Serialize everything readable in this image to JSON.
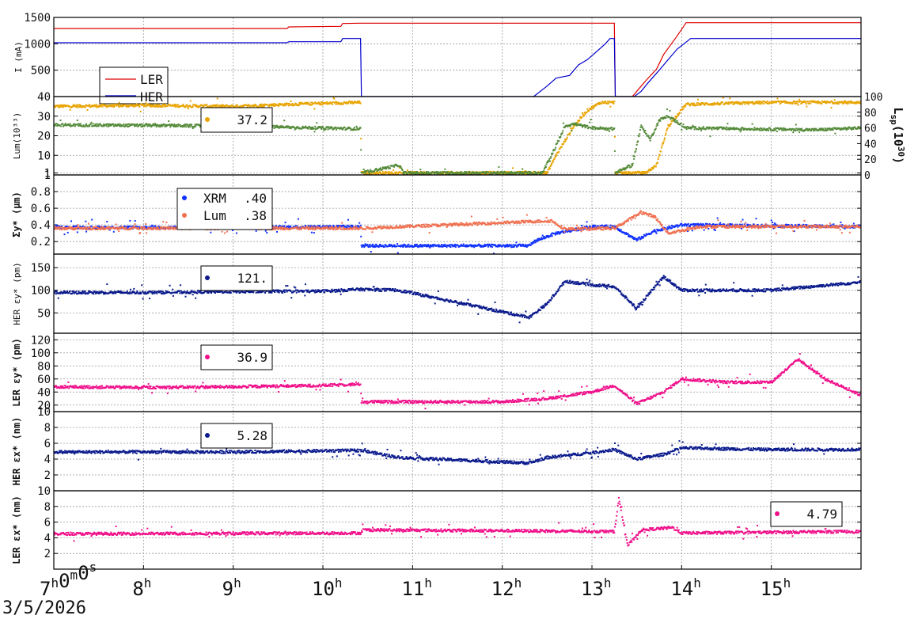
{
  "chart_data": {
    "date_label": "3/5/2026",
    "time_axis": {
      "range_h": [
        7.0,
        16.0
      ],
      "ticks": [
        {
          "h": 7,
          "label": "7",
          "sup": "h",
          "extra": "0",
          "extra_sup": "m",
          "extra2": "0",
          "extra2_sup": "s"
        },
        {
          "h": 8,
          "label": "8",
          "sup": "h"
        },
        {
          "h": 9,
          "label": "9",
          "sup": "h"
        },
        {
          "h": 10,
          "label": "10",
          "sup": "h"
        },
        {
          "h": 11,
          "label": "11",
          "sup": "h"
        },
        {
          "h": 12,
          "label": "12",
          "sup": "h"
        },
        {
          "h": 13,
          "label": "13",
          "sup": "h"
        },
        {
          "h": 14,
          "label": "14",
          "sup": "h"
        },
        {
          "h": 15,
          "label": "15",
          "sup": "h"
        }
      ]
    },
    "panels": [
      {
        "id": "current",
        "type": "line",
        "ylabel": "I (mA)",
        "ylim": [
          0,
          1500
        ],
        "yticks": [
          500,
          1000,
          1500
        ],
        "legend": {
          "LER": "LER",
          "HER": "HER"
        },
        "series": [
          {
            "name": "LER",
            "color": "#dd0000",
            "points": [
              [
                7.0,
                1290
              ],
              [
                9.6,
                1290
              ],
              [
                9.62,
                1320
              ],
              [
                10.2,
                1330
              ],
              [
                10.22,
                1385
              ],
              [
                10.42,
                1390
              ],
              [
                13.25,
                1390
              ],
              [
                13.26,
                0
              ],
              [
                13.45,
                0
              ],
              [
                13.55,
                200
              ],
              [
                13.6,
                300
              ],
              [
                13.72,
                520
              ],
              [
                13.8,
                800
              ],
              [
                13.95,
                1150
              ],
              [
                14.05,
                1400
              ],
              [
                16.0,
                1400
              ]
            ]
          },
          {
            "name": "HER",
            "color": "#0000cc",
            "points": [
              [
                7.0,
                1020
              ],
              [
                9.6,
                1020
              ],
              [
                9.62,
                1040
              ],
              [
                10.2,
                1040
              ],
              [
                10.22,
                1100
              ],
              [
                10.42,
                1100
              ],
              [
                10.43,
                0
              ],
              [
                12.35,
                0
              ],
              [
                12.5,
                200
              ],
              [
                12.6,
                350
              ],
              [
                12.75,
                400
              ],
              [
                12.85,
                600
              ],
              [
                12.95,
                700
              ],
              [
                13.05,
                850
              ],
              [
                13.15,
                1000
              ],
              [
                13.2,
                1100
              ],
              [
                13.25,
                1100
              ],
              [
                13.26,
                0
              ],
              [
                13.47,
                0
              ],
              [
                13.55,
                100
              ],
              [
                13.62,
                250
              ],
              [
                13.75,
                500
              ],
              [
                13.85,
                700
              ],
              [
                13.95,
                900
              ],
              [
                14.1,
                1100
              ],
              [
                16.0,
                1100
              ]
            ]
          }
        ]
      },
      {
        "id": "luminosity",
        "type": "scatter",
        "ylabel": "Lum(10³³)",
        "ylim": [
          0,
          40
        ],
        "yticks": [
          1,
          10,
          20,
          30,
          40
        ],
        "ytick_labels": [
          "1",
          "10",
          "20",
          "30",
          "40"
        ],
        "y2label": "L",
        "y2label_sub": "sp",
        "y2label_tail": "(10",
        "y2label_sup": "30",
        "y2label_end": ")",
        "y2lim": [
          0,
          100
        ],
        "y2ticks": [
          0,
          20,
          40,
          60,
          80,
          100
        ],
        "legend_value": "37.2",
        "series": [
          {
            "name": "",
            "color": "#e8a400",
            "points": [
              [
                7.0,
                35
              ],
              [
                8.0,
                35.5
              ],
              [
                9.0,
                35
              ],
              [
                9.6,
                36
              ],
              [
                10.42,
                37
              ],
              [
                10.43,
                1
              ],
              [
                12.5,
                1
              ],
              [
                12.6,
                10
              ],
              [
                12.8,
                25
              ],
              [
                12.95,
                33
              ],
              [
                13.1,
                37
              ],
              [
                13.25,
                37
              ],
              [
                13.26,
                1
              ],
              [
                13.6,
                1
              ],
              [
                13.72,
                5
              ],
              [
                13.85,
                25
              ],
              [
                14.05,
                36
              ],
              [
                15.0,
                37
              ],
              [
                16.0,
                37
              ]
            ]
          },
          {
            "name": "",
            "color": "#558b3a",
            "points": [
              [
                7.0,
                25.5
              ],
              [
                9.0,
                25
              ],
              [
                10.42,
                23.5
              ],
              [
                10.43,
                1
              ],
              [
                10.85,
                5
              ],
              [
                10.9,
                1
              ],
              [
                12.45,
                1
              ],
              [
                12.6,
                15
              ],
              [
                12.7,
                25
              ],
              [
                12.8,
                26
              ],
              [
                13.0,
                24
              ],
              [
                13.25,
                23.5
              ],
              [
                13.26,
                1
              ],
              [
                13.45,
                5
              ],
              [
                13.55,
                25
              ],
              [
                13.65,
                18
              ],
              [
                13.75,
                28
              ],
              [
                13.85,
                30
              ],
              [
                14.05,
                24
              ],
              [
                15.5,
                23
              ],
              [
                16.0,
                24
              ]
            ]
          }
        ]
      },
      {
        "id": "sigma_y",
        "type": "scatter",
        "ylabel": "Σy* (μm)",
        "ylim": [
          0.05,
          1.0
        ],
        "yticks": [
          0.2,
          0.4,
          0.6,
          0.8,
          1
        ],
        "ytick_labels": [
          "0.2",
          "0.4",
          "0.6",
          "0.8",
          "1"
        ],
        "legend": [
          {
            "name": "XRM",
            "value": ".40",
            "color": "#1030ff"
          },
          {
            "name": "Lum",
            "value": ".38",
            "color": "#f07050"
          }
        ],
        "series": [
          {
            "name": "XRM",
            "color": "#1030ff",
            "points": [
              [
                7.0,
                0.37
              ],
              [
                9.0,
                0.37
              ],
              [
                10.42,
                0.38
              ],
              [
                10.43,
                0.15
              ],
              [
                12.3,
                0.15
              ],
              [
                12.35,
                0.2
              ],
              [
                12.6,
                0.3
              ],
              [
                13.0,
                0.38
              ],
              [
                13.25,
                0.38
              ],
              [
                13.5,
                0.22
              ],
              [
                13.7,
                0.33
              ],
              [
                14.0,
                0.4
              ],
              [
                15.0,
                0.39
              ],
              [
                16.0,
                0.38
              ]
            ]
          },
          {
            "name": "Lum",
            "color": "#f07050",
            "points": [
              [
                7.0,
                0.36
              ],
              [
                10.42,
                0.36
              ],
              [
                12.55,
                0.45
              ],
              [
                12.7,
                0.35
              ],
              [
                13.25,
                0.36
              ],
              [
                13.55,
                0.55
              ],
              [
                13.7,
                0.5
              ],
              [
                13.85,
                0.3
              ],
              [
                14.2,
                0.38
              ],
              [
                16.0,
                0.38
              ]
            ]
          }
        ]
      },
      {
        "id": "her_eps_y",
        "type": "scatter",
        "ylabel": "HER εy* (pm)",
        "ylim": [
          5,
          180
        ],
        "yticks": [
          50,
          100,
          150
        ],
        "legend_value": "121.",
        "series": [
          {
            "name": "",
            "color": "#0a1a8c",
            "points": [
              [
                7.0,
                95
              ],
              [
                8.0,
                95
              ],
              [
                9.0,
                97
              ],
              [
                10.0,
                98
              ],
              [
                10.42,
                102
              ],
              [
                10.85,
                100
              ],
              [
                12.3,
                40
              ],
              [
                12.5,
                70
              ],
              [
                12.7,
                120
              ],
              [
                13.0,
                112
              ],
              [
                13.25,
                108
              ],
              [
                13.5,
                60
              ],
              [
                13.8,
                130
              ],
              [
                14.0,
                100
              ],
              [
                15.0,
                100
              ],
              [
                16.0,
                118
              ]
            ]
          }
        ]
      },
      {
        "id": "ler_eps_y",
        "type": "scatter",
        "ylabel": "LER εy* (pm)",
        "ylim": [
          10,
          130
        ],
        "yticks": [
          10,
          20,
          40,
          60,
          80,
          100,
          120
        ],
        "legend_value": "36.9",
        "series": [
          {
            "name": "",
            "color": "#f0108a",
            "points": [
              [
                7.0,
                48
              ],
              [
                8.0,
                47
              ],
              [
                9.0,
                48
              ],
              [
                10.0,
                50
              ],
              [
                10.42,
                52
              ],
              [
                10.43,
                25
              ],
              [
                12.0,
                25
              ],
              [
                12.5,
                30
              ],
              [
                13.0,
                40
              ],
              [
                13.25,
                50
              ],
              [
                13.5,
                22
              ],
              [
                13.8,
                40
              ],
              [
                14.0,
                60
              ],
              [
                14.5,
                55
              ],
              [
                15.0,
                55
              ],
              [
                15.3,
                90
              ],
              [
                15.6,
                60
              ],
              [
                16.0,
                35
              ]
            ]
          }
        ]
      },
      {
        "id": "her_eps_x",
        "type": "scatter",
        "ylabel": "HER εx* (nm)",
        "ylim": [
          0,
          10
        ],
        "yticks": [
          2,
          4,
          6,
          8
        ],
        "legend_value": "5.28",
        "series": [
          {
            "name": "",
            "color": "#0a1a8c",
            "points": [
              [
                7.0,
                4.9
              ],
              [
                9.0,
                4.9
              ],
              [
                10.42,
                5.1
              ],
              [
                10.85,
                4.2
              ],
              [
                12.3,
                3.5
              ],
              [
                12.5,
                4.2
              ],
              [
                13.0,
                4.8
              ],
              [
                13.25,
                5.2
              ],
              [
                13.5,
                4.0
              ],
              [
                13.8,
                4.6
              ],
              [
                14.0,
                5.4
              ],
              [
                15.0,
                5.2
              ],
              [
                16.0,
                5.2
              ]
            ]
          }
        ]
      },
      {
        "id": "ler_eps_x",
        "type": "scatter",
        "ylabel": "LER εx* (nm)",
        "ylim": [
          0,
          10
        ],
        "yticks": [
          2,
          4,
          6,
          8,
          10
        ],
        "legend_value": "4.79",
        "series": [
          {
            "name": "",
            "color": "#f0108a",
            "points": [
              [
                7.0,
                4.5
              ],
              [
                10.42,
                4.6
              ],
              [
                10.45,
                5.0
              ],
              [
                12.0,
                4.9
              ],
              [
                13.25,
                4.8
              ],
              [
                13.3,
                9.0
              ],
              [
                13.4,
                3.0
              ],
              [
                13.55,
                5.0
              ],
              [
                13.9,
                5.3
              ],
              [
                14.0,
                4.6
              ],
              [
                16.0,
                4.8
              ]
            ]
          }
        ]
      }
    ]
  }
}
